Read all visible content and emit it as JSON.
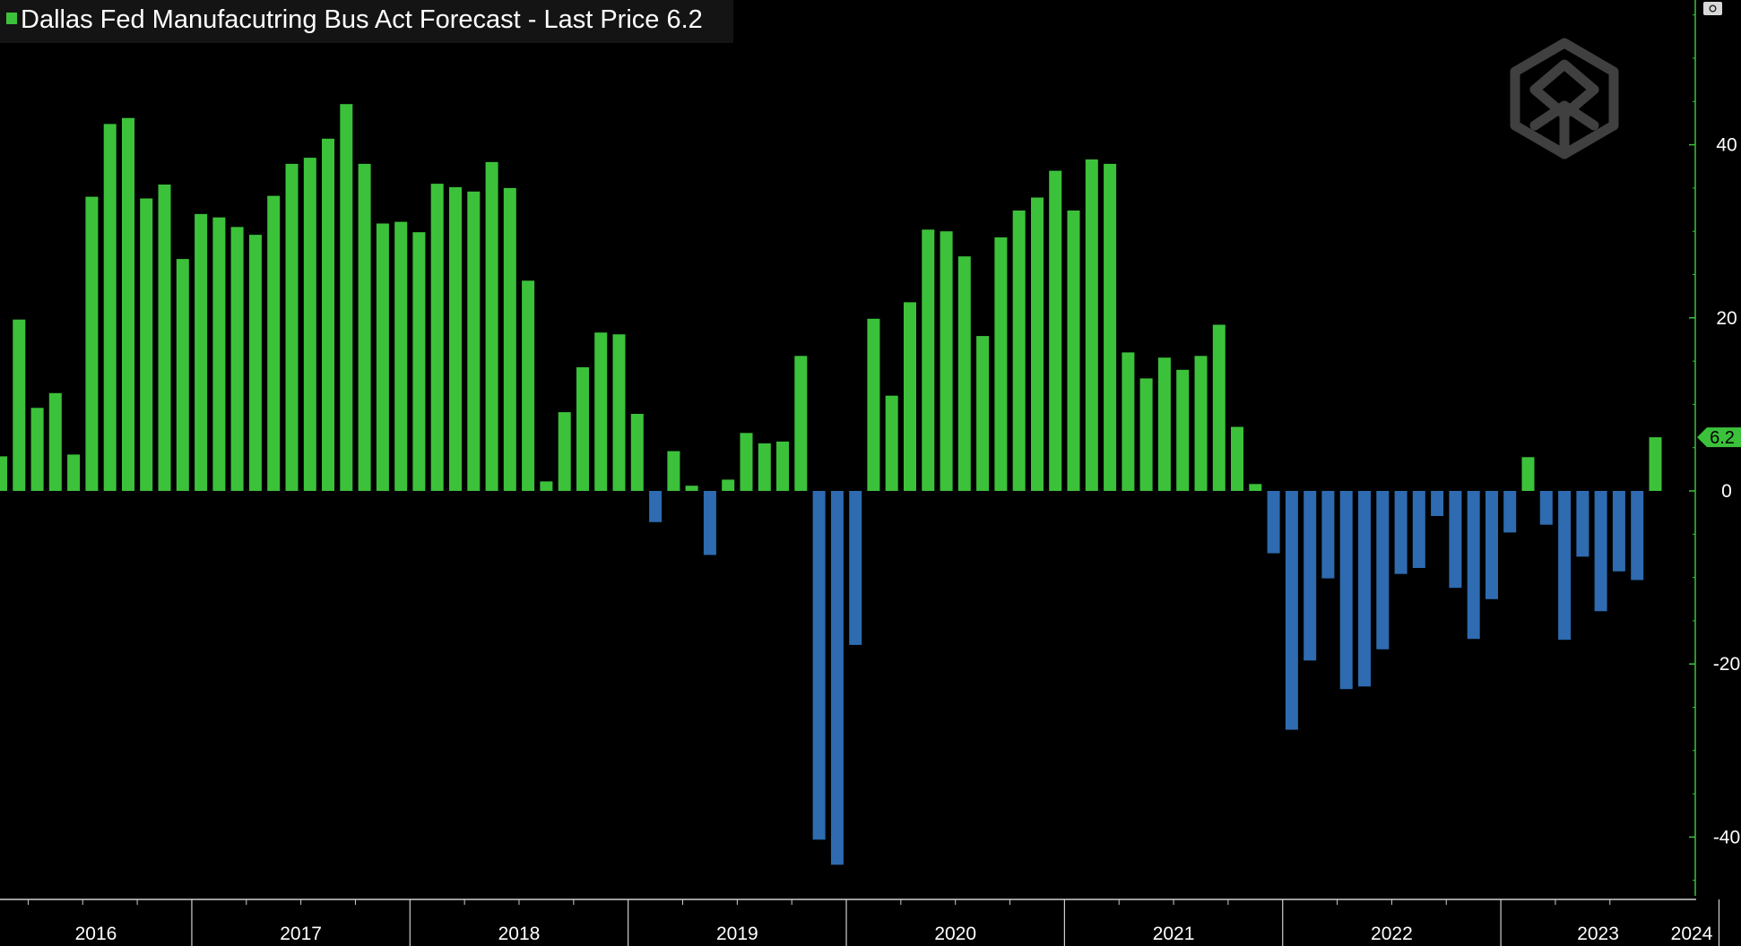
{
  "title": "Dallas Fed Manufacutring Bus Act Forecast - Last Price",
  "last_price_value": "6.2",
  "last_value_label": "6.2",
  "colors": {
    "background": "#000000",
    "positive": "#3cc13b",
    "negative": "#2e6bb0",
    "axis": "#3cc13b",
    "text": "#ffffff"
  },
  "chart_data": {
    "type": "bar",
    "ylim": [
      -47,
      56
    ],
    "y_ticks": [
      40,
      20,
      0,
      -20,
      -40
    ],
    "y_tick_labels": [
      "40",
      "20",
      "0",
      "-20",
      "-40"
    ],
    "year_labels": [
      "2016",
      "2017",
      "2018",
      "2019",
      "2020",
      "2021",
      "2022",
      "2023",
      "2024"
    ],
    "first_period": "2016-02",
    "series": [
      {
        "values": [
          4,
          19.8,
          9.6,
          11.3,
          4.2,
          34,
          42.4,
          43.1,
          33.8,
          35.4,
          26.8,
          32,
          31.6,
          30.5,
          29.6,
          34.1,
          37.8,
          38.5,
          40.7,
          44.7,
          37.8,
          30.9,
          31.1,
          29.9,
          35.5,
          35.1,
          34.6,
          38,
          35,
          24.3,
          1.1,
          9.1,
          14.3,
          18.3,
          18.1,
          8.9,
          -3.6,
          4.6,
          0.6,
          -7.4,
          1.3,
          6.7,
          5.5,
          5.7,
          15.6,
          -40.3,
          -43.2,
          -17.8,
          19.9,
          11,
          21.8,
          30.2,
          30,
          27.1,
          17.9,
          29.3,
          32.4,
          33.9,
          37,
          32.4,
          38.3,
          37.8,
          16,
          13,
          15.4,
          14,
          15.6,
          19.2,
          7.4,
          0.8,
          -7.2,
          -27.6,
          -19.6,
          -10.1,
          -22.9,
          -22.6,
          -18.3,
          -9.6,
          -8.9,
          -2.9,
          -11.2,
          -17.1,
          -12.5,
          -4.8,
          3.9,
          -3.9,
          -17.2,
          -7.6,
          -13.9,
          -9.3,
          -10.3,
          6.2
        ]
      }
    ]
  }
}
